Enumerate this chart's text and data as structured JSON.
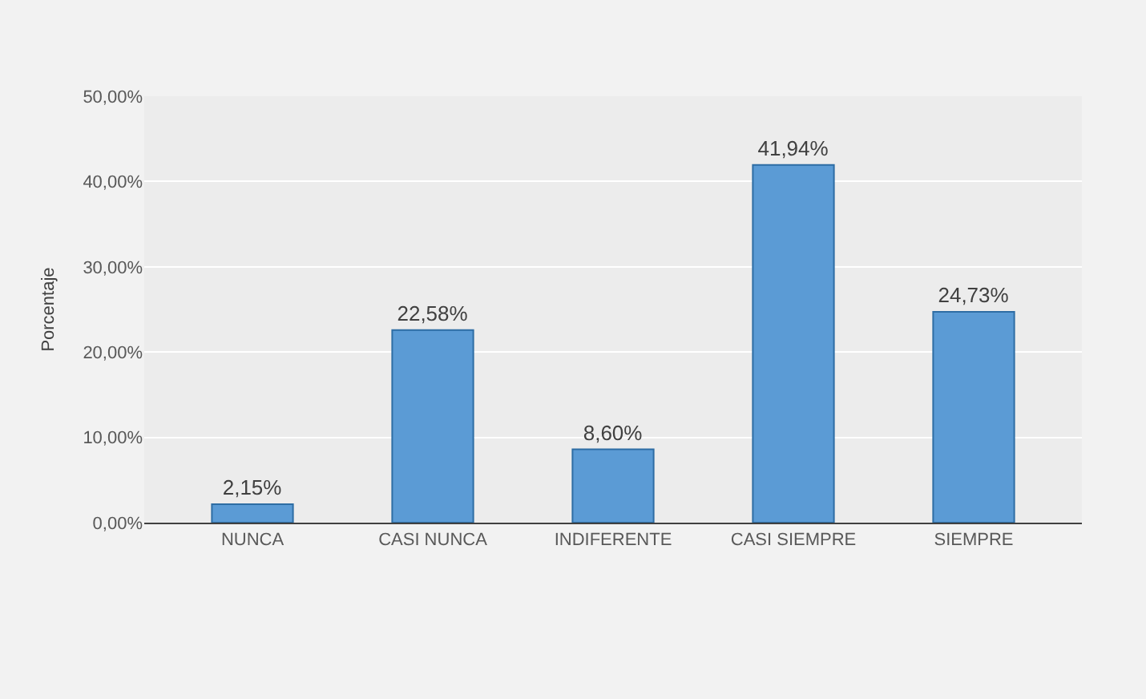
{
  "chart_data": {
    "type": "bar",
    "ylabel": "Porcentaje",
    "categories": [
      "NUNCA",
      "CASI NUNCA",
      "INDIFERENTE",
      "CASI SIEMPRE",
      "SIEMPRE"
    ],
    "values": [
      2.15,
      22.58,
      8.6,
      41.94,
      24.73
    ],
    "value_labels": [
      "2,15%",
      "22,58%",
      "8,60%",
      "41,94%",
      "24,73%"
    ],
    "color": "#5b9bd5",
    "ylim": [
      0,
      50
    ],
    "yticks": [
      {
        "value": 0,
        "label": "0,00%"
      },
      {
        "value": 10,
        "label": "10,00%"
      },
      {
        "value": 20,
        "label": "20,00%"
      },
      {
        "value": 30,
        "label": "30,00%"
      },
      {
        "value": 40,
        "label": "40,00%"
      },
      {
        "value": 50,
        "label": "50,00%"
      }
    ],
    "grid": "y",
    "legend": false
  }
}
